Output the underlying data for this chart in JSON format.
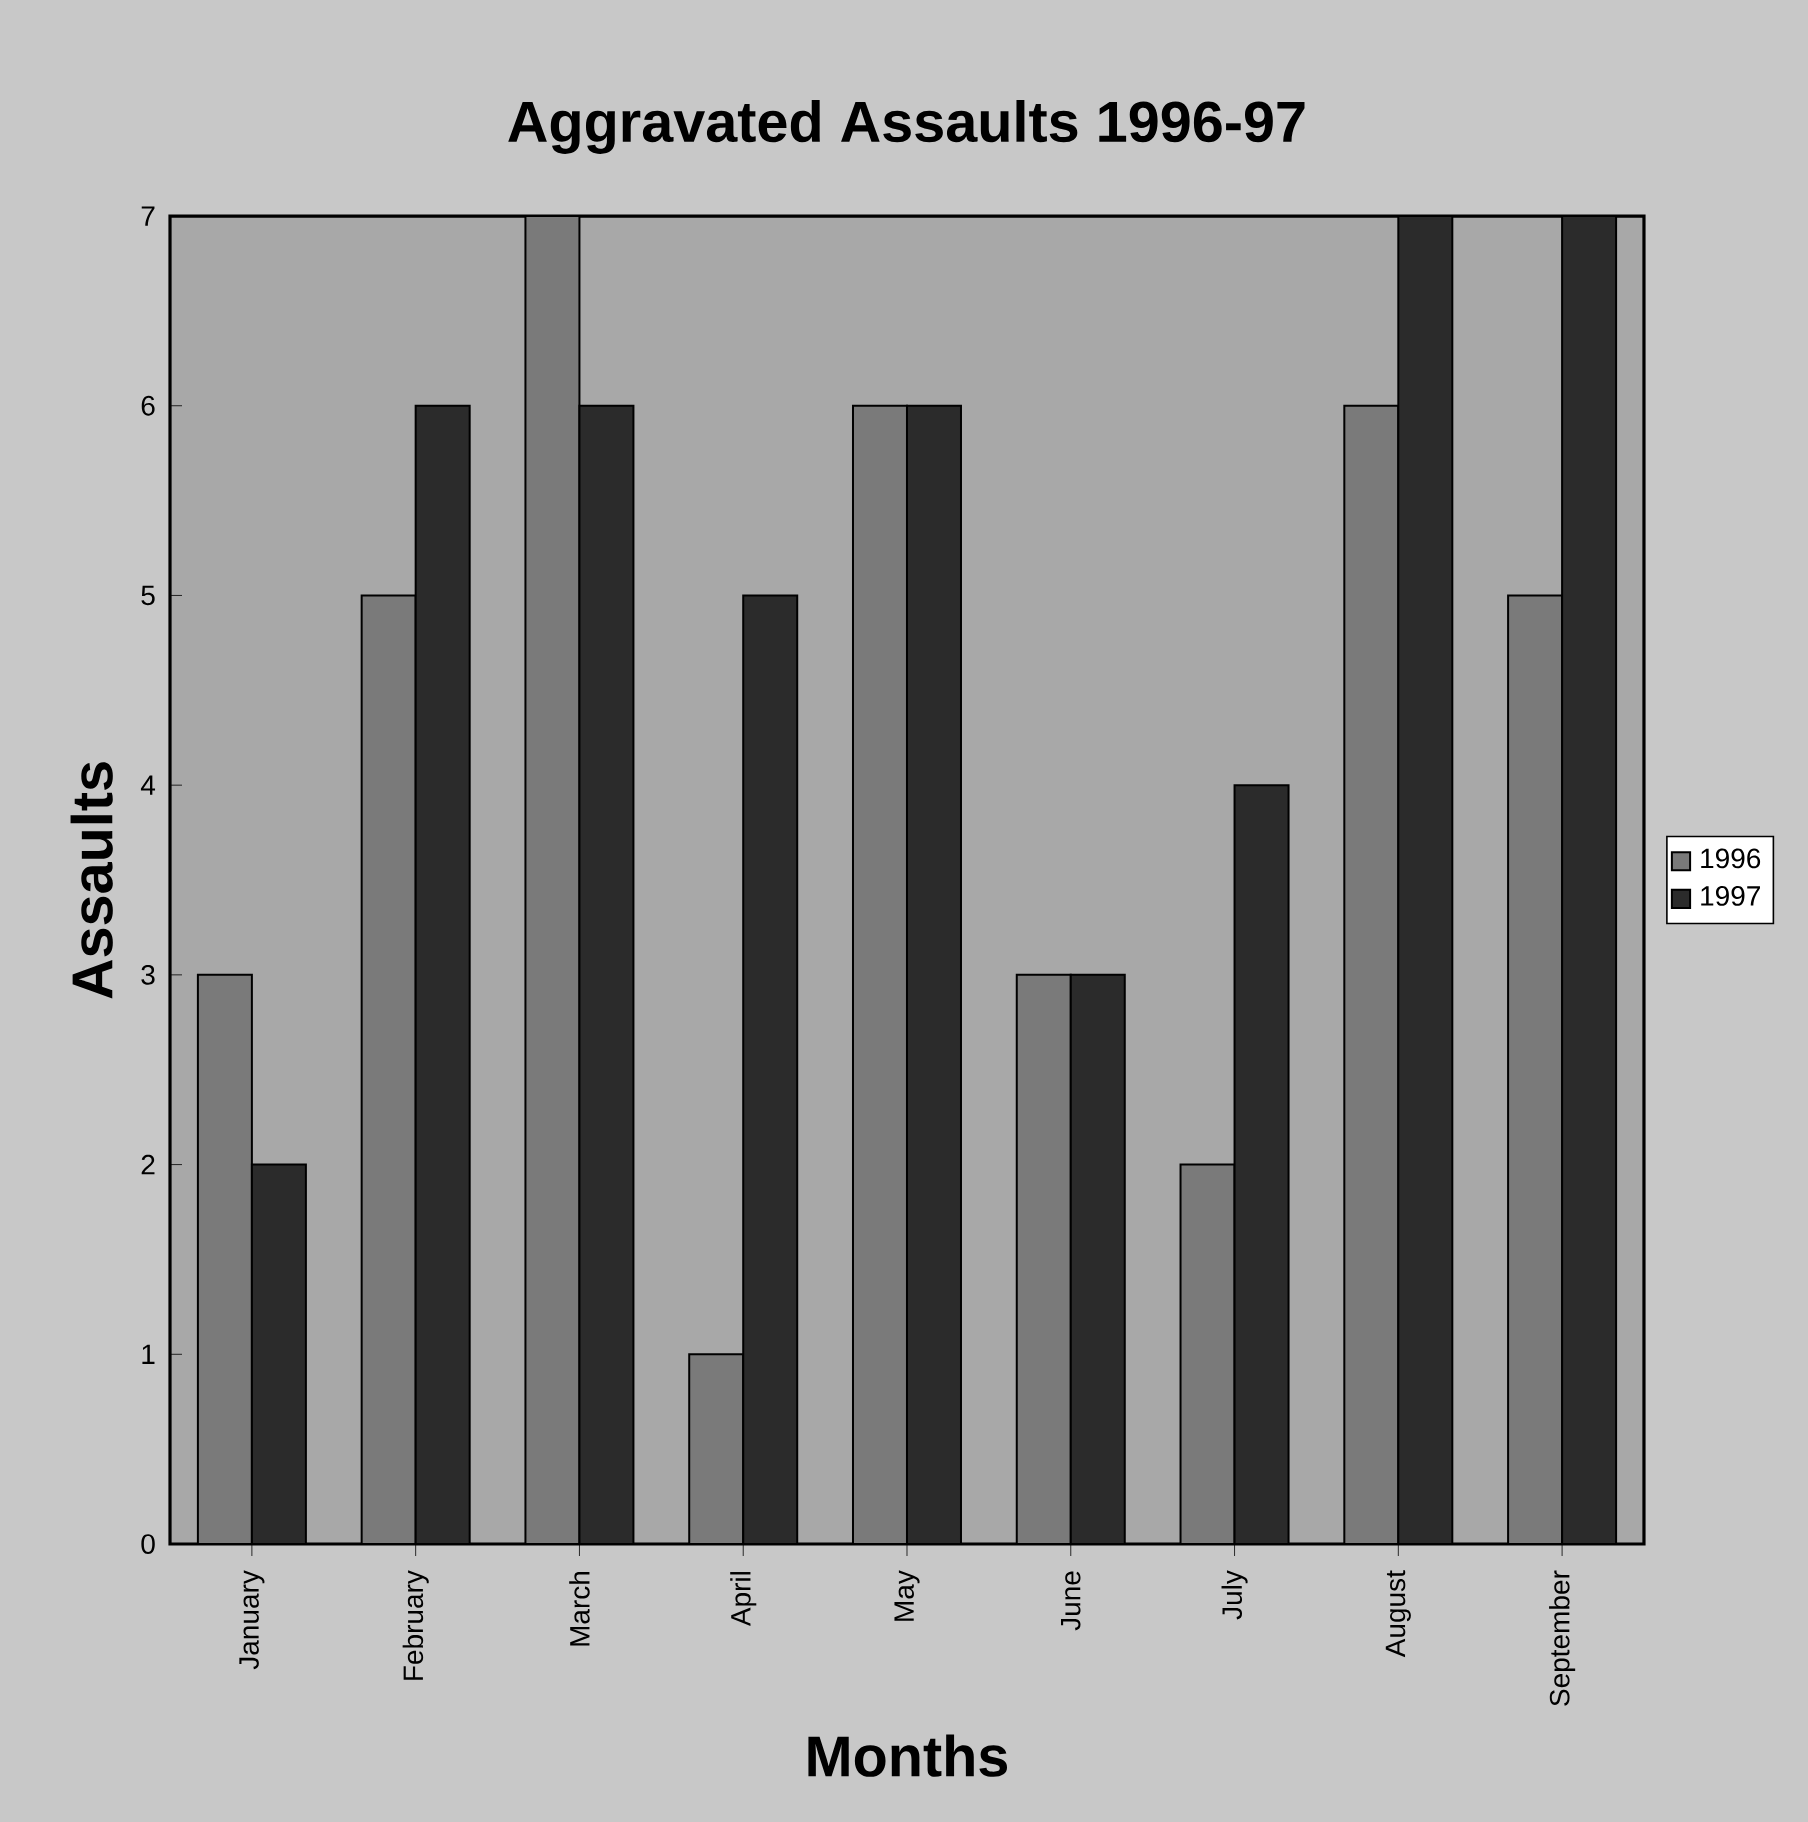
{
  "chart_data": {
    "type": "bar",
    "title": "Aggravated Assaults 1996-97",
    "xlabel": "Months",
    "ylabel": "Assaults",
    "categories": [
      "January",
      "February",
      "March",
      "April",
      "May",
      "June",
      "July",
      "August",
      "September"
    ],
    "series": [
      {
        "name": "1996",
        "color": "#7a7a7a",
        "values": [
          3,
          5,
          7,
          1,
          6,
          3,
          2,
          6,
          5
        ]
      },
      {
        "name": "1997",
        "color": "#2b2b2b",
        "values": [
          2,
          6,
          6,
          5,
          6,
          3,
          4,
          7,
          7
        ]
      }
    ],
    "ylim": [
      0,
      7
    ],
    "yticks": [
      0,
      1,
      2,
      3,
      4,
      5,
      6,
      7
    ],
    "grid": false,
    "legend": "right"
  }
}
